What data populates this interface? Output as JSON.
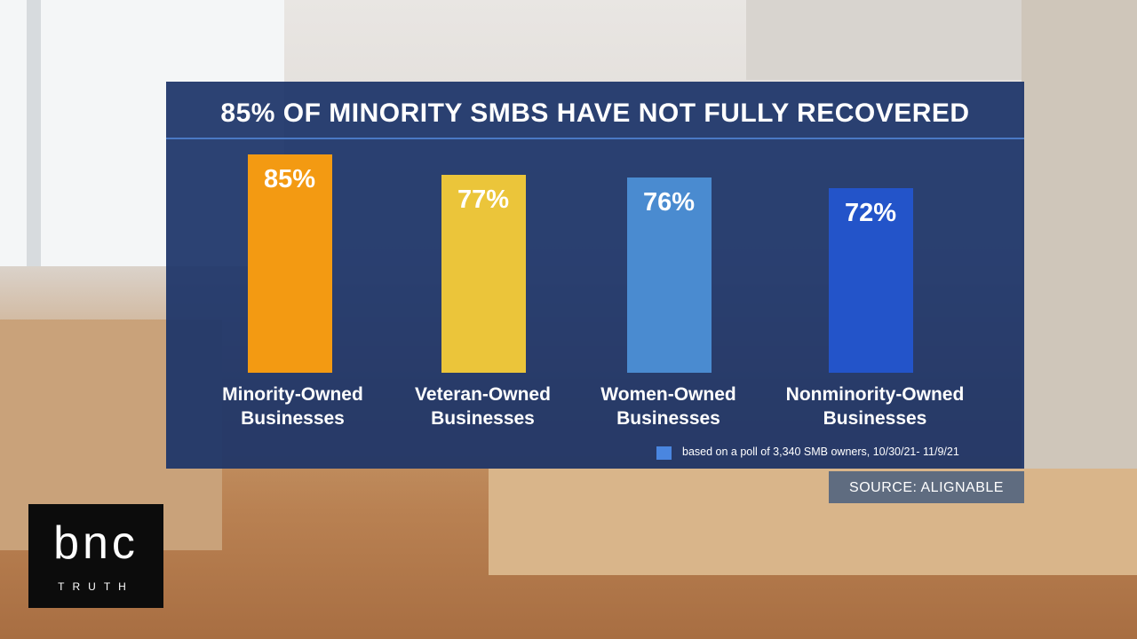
{
  "chart_data": {
    "type": "bar",
    "title": "85% OF MINORITY SMBS HAVE NOT FULLY RECOVERED",
    "categories": [
      "Minority-Owned Businesses",
      "Veteran-Owned Businesses",
      "Women-Owned Businesses",
      "Nonminority-Owned Businesses"
    ],
    "values": [
      85,
      77,
      76,
      72
    ],
    "value_labels": [
      "85%",
      "77%",
      "76%",
      "72%"
    ],
    "colors": [
      "#f39a12",
      "#ebc53a",
      "#4a8bd0",
      "#2354c9"
    ],
    "legend": {
      "color": "#4a86e0",
      "text": "based on a poll of 3,340 SMB owners, 10/30/21- 11/9/21"
    },
    "source": "SOURCE: ALIGNABLE"
  },
  "logo": {
    "name": "bnc",
    "tagline": "TRUTH"
  }
}
